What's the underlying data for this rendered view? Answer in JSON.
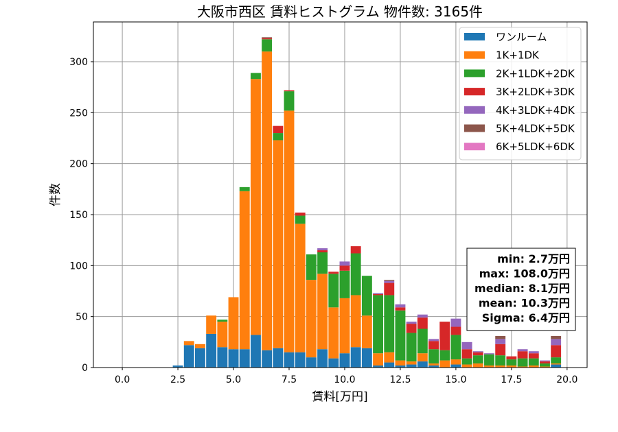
{
  "chart_data": {
    "type": "bar",
    "stacked": true,
    "title": "大阪市西区 賃料ヒストグラム 物件数: 3165件",
    "xlabel": "賃料[万円]",
    "ylabel": "件数",
    "xlim": [
      -1.3,
      20.9
    ],
    "ylim": [
      0,
      339
    ],
    "grid": true,
    "legend_position": "top-right",
    "bin_width": 0.5,
    "x": [
      2.5,
      3.0,
      3.5,
      4.0,
      4.5,
      5.0,
      5.5,
      6.0,
      6.5,
      7.0,
      7.5,
      8.0,
      8.5,
      9.0,
      9.5,
      10.0,
      10.5,
      11.0,
      11.5,
      12.0,
      12.5,
      13.0,
      13.5,
      14.0,
      14.5,
      15.0,
      15.5,
      16.0,
      16.5,
      17.0,
      17.5,
      18.0,
      18.5,
      19.0,
      19.5
    ],
    "x_ticks": [
      0.0,
      2.5,
      5.0,
      7.5,
      10.0,
      12.5,
      15.0,
      17.5,
      20.0
    ],
    "x_tick_labels": [
      "0.0",
      "2.5",
      "5.0",
      "7.5",
      "10.0",
      "12.5",
      "15.0",
      "17.5",
      "20.0"
    ],
    "y_ticks": [
      0,
      50,
      100,
      150,
      200,
      250,
      300
    ],
    "y_tick_labels": [
      "0",
      "50",
      "100",
      "150",
      "200",
      "250",
      "300"
    ],
    "series": [
      {
        "name": "ワンルーム",
        "color": "#1f77b4",
        "values": [
          2,
          22,
          19,
          33,
          20,
          18,
          18,
          32,
          17,
          19,
          15,
          15,
          10,
          18,
          9,
          14,
          20,
          19,
          2,
          5,
          2,
          3,
          6,
          2,
          0,
          3,
          0,
          0,
          0,
          0,
          0,
          0,
          0,
          0,
          3
        ]
      },
      {
        "name": "1K+1DK",
        "color": "#ff7f0e",
        "values": [
          0,
          4,
          4,
          18,
          25,
          51,
          155,
          251,
          293,
          204,
          237,
          126,
          76,
          74,
          50,
          54,
          51,
          32,
          12,
          10,
          5,
          3,
          8,
          2,
          7,
          5,
          3,
          4,
          2,
          2,
          2,
          1,
          2,
          1,
          1
        ]
      },
      {
        "name": "2K+1LDK+2DK",
        "color": "#2ca02c",
        "values": [
          0,
          0,
          0,
          0,
          2,
          0,
          4,
          6,
          12,
          7,
          19,
          8,
          25,
          21,
          33,
          27,
          41,
          39,
          57,
          56,
          49,
          28,
          24,
          14,
          10,
          24,
          6,
          8,
          11,
          10,
          6,
          8,
          7,
          3,
          6
        ]
      },
      {
        "name": "3K+2LDK+3DK",
        "color": "#d62728",
        "values": [
          0,
          0,
          0,
          0,
          0,
          0,
          0,
          0,
          1,
          7,
          1,
          3,
          0,
          2,
          2,
          5,
          7,
          0,
          1,
          12,
          3,
          9,
          11,
          8,
          28,
          8,
          9,
          3,
          0,
          11,
          3,
          7,
          5,
          2,
          12
        ]
      },
      {
        "name": "4K+3LDK+4DK",
        "color": "#9467bd",
        "values": [
          0,
          0,
          0,
          0,
          0,
          0,
          0,
          0,
          0,
          0,
          0,
          0,
          0,
          2,
          0,
          4,
          0,
          0,
          1,
          2,
          3,
          2,
          3,
          2,
          0,
          8,
          7,
          1,
          1,
          5,
          0,
          2,
          2,
          1,
          6
        ]
      },
      {
        "name": "5K+4LDK+5DK",
        "color": "#8c564b",
        "values": [
          0,
          0,
          0,
          0,
          0,
          0,
          0,
          0,
          1,
          0,
          0,
          0,
          0,
          0,
          0,
          0,
          0,
          0,
          0,
          1,
          0,
          0,
          0,
          0,
          0,
          0,
          0,
          0,
          0,
          3,
          0,
          0,
          0,
          0,
          3
        ]
      },
      {
        "name": "6K+5LDK+6DK",
        "color": "#e377c2",
        "values": [
          0,
          0,
          0,
          0,
          0,
          0,
          0,
          0,
          0,
          0,
          0,
          0,
          0,
          0,
          0,
          0,
          0,
          0,
          0,
          0,
          0,
          0,
          0,
          0,
          0,
          0,
          0,
          0,
          0,
          0,
          0,
          0,
          0,
          0,
          0
        ]
      }
    ],
    "annotation": {
      "lines": [
        "min: 2.7万円",
        "max: 108.0万円",
        "median: 8.1万円",
        "mean: 10.3万円",
        "Sigma: 6.4万円"
      ],
      "position": "right"
    }
  }
}
